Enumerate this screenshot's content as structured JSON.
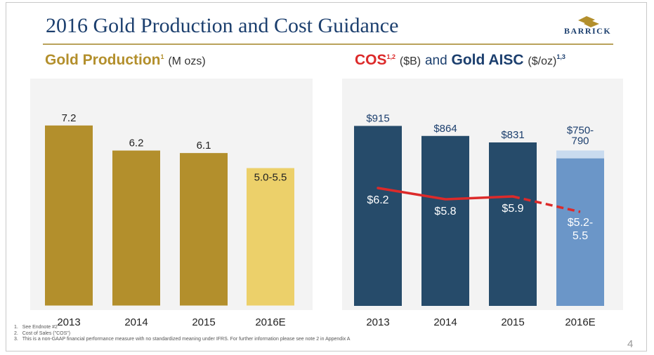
{
  "slide": {
    "title": "2016 Gold Production and Cost Guidance",
    "logo_text": "BARRICK",
    "page_number": "4",
    "footnotes": [
      {
        "num": "1.",
        "text": "See Endnote #2"
      },
      {
        "num": "2.",
        "text": "Cost of Sales (\"COS\")"
      },
      {
        "num": "3.",
        "text": "This is a non-GAAP financial performance measure with no standardized meaning under IFRS. For further information please see note 2 in Appendix A"
      }
    ]
  },
  "production_title": {
    "label": "Gold Production",
    "sup": "1",
    "unit": "(M ozs)"
  },
  "cost_title": {
    "cos": "COS",
    "cos_sup": "1,2",
    "cos_unit": "($B)",
    "and": "and",
    "aisc": "Gold AISC",
    "aisc_unit": "($/oz)",
    "aisc_sup": "1,3"
  },
  "colors": {
    "gold": "#b38f2c",
    "gold_light": "#ecd06a",
    "navy": "#264b6a",
    "blue_light": "#6b96c8",
    "blue_pale": "#c9dbef",
    "cos_line": "#dc2a2a"
  },
  "chart_data": [
    {
      "type": "bar",
      "title": "Gold Production",
      "ylabel": "M ozs",
      "categories": [
        "2013",
        "2014",
        "2015",
        "2016E"
      ],
      "values": [
        7.2,
        6.2,
        6.1,
        5.5
      ],
      "value_low": [
        null,
        null,
        null,
        5.0
      ],
      "data_labels": [
        "7.2",
        "6.2",
        "6.1",
        "5.0-5.5"
      ],
      "ylim": [
        0,
        8.4
      ],
      "grid": false
    },
    {
      "type": "bar",
      "title": "Gold AISC and COS",
      "categories": [
        "2013",
        "2014",
        "2015",
        "2016E"
      ],
      "series": [
        {
          "name": "Gold AISC",
          "unit": "$/oz",
          "values": [
            915,
            864,
            831,
            790
          ],
          "value_low": [
            null,
            null,
            null,
            750
          ],
          "data_labels": [
            "$915",
            "$864",
            "$831",
            "$750-790"
          ]
        },
        {
          "name": "COS",
          "unit": "$B",
          "type": "line",
          "values": [
            6.2,
            5.8,
            5.9,
            5.35
          ],
          "value_range": [
            null,
            null,
            null,
            [
              5.2,
              5.5
            ]
          ],
          "data_labels": [
            "$6.2",
            "$5.8",
            "$5.9",
            "$5.2-5.5"
          ],
          "estimate_dashed_from": "2015"
        }
      ],
      "ylim": [
        0,
        1070
      ],
      "grid": false
    }
  ]
}
